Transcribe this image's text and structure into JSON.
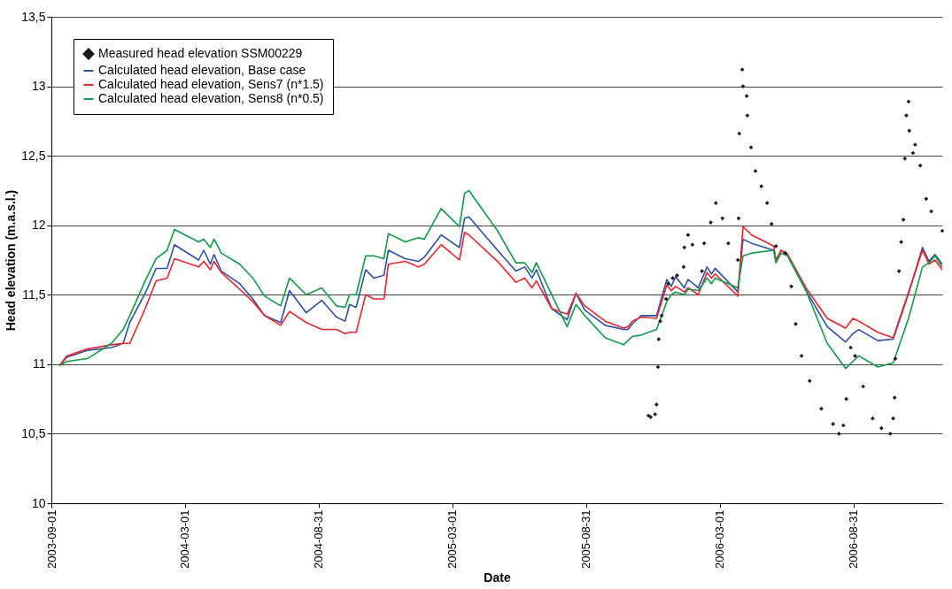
{
  "chart_data": {
    "type": "line",
    "xlabel": "Date",
    "ylabel": "Head elevation (m.a.s.l.)",
    "ylim": [
      10,
      13.5
    ],
    "yticks": [
      10,
      {
        "value": 10.5,
        "label": "10,5"
      },
      11,
      {
        "value": 11.5,
        "label": "11,5"
      },
      12,
      {
        "value": 12.5,
        "label": "12,5"
      },
      13,
      {
        "value": 13.5,
        "label": "13,5"
      }
    ],
    "xlim": [
      "2003-09-01",
      "2006-12-30"
    ],
    "xticks": [
      "2003-09-01",
      "2004-03-01",
      "2004-08-31",
      "2005-03-01",
      "2005-08-31",
      "2006-03-01",
      "2006-08-31"
    ],
    "grid": "y",
    "legend": "top left",
    "series": [
      {
        "name": "Measured head elevation SSM00229",
        "type": "scatter",
        "color": "#1a1a1a",
        "x": [
          "2005-11-24",
          "2005-11-27",
          "2005-12-03",
          "2005-12-05",
          "2005-12-07",
          "2005-12-08",
          "2005-12-10",
          "2005-12-12",
          "2005-12-18",
          "2005-12-21",
          "2005-12-27",
          "2006-01-02",
          "2006-01-11",
          "2006-01-12",
          "2006-01-17",
          "2006-01-23",
          "2006-02-05",
          "2006-02-08",
          "2006-02-17",
          "2006-02-24",
          "2006-03-05",
          "2006-03-13",
          "2006-03-26",
          "2006-03-27",
          "2006-03-28",
          "2006-04-01",
          "2006-04-02",
          "2006-04-07",
          "2006-04-08",
          "2006-04-13",
          "2006-04-19",
          "2006-04-27",
          "2006-05-05",
          "2006-05-11",
          "2006-05-17",
          "2006-05-30",
          "2006-06-07",
          "2006-06-13",
          "2006-06-21",
          "2006-07-02",
          "2006-07-18",
          "2006-08-03",
          "2006-08-11",
          "2006-08-17",
          "2006-08-21",
          "2006-08-27",
          "2006-09-02",
          "2006-09-13",
          "2006-09-26",
          "2006-10-08",
          "2006-10-20",
          "2006-10-24",
          "2006-10-26",
          "2006-10-27",
          "2006-11-01",
          "2006-11-04",
          "2006-11-07",
          "2006-11-09",
          "2006-11-11",
          "2006-11-14",
          "2006-11-15",
          "2006-11-20",
          "2006-11-23",
          "2006-11-30",
          "2006-12-08",
          "2006-12-15",
          "2006-12-30"
        ],
        "values": [
          10.63,
          10.62,
          10.64,
          10.71,
          10.98,
          11.18,
          11.31,
          11.35,
          11.47,
          11.58,
          11.62,
          11.64,
          11.7,
          11.84,
          11.93,
          11.86,
          11.67,
          11.87,
          12.02,
          12.16,
          12.05,
          11.87,
          11.75,
          12.05,
          12.66,
          13.12,
          13.0,
          12.93,
          12.79,
          12.56,
          12.39,
          12.28,
          12.16,
          12.01,
          11.85,
          11.8,
          11.56,
          11.29,
          11.06,
          10.88,
          10.68,
          10.57,
          10.5,
          10.56,
          10.75,
          11.12,
          11.06,
          10.84,
          10.61,
          10.54,
          10.5,
          10.61,
          10.76,
          11.04,
          11.67,
          11.88,
          12.04,
          12.48,
          12.79,
          12.89,
          12.68,
          12.52,
          12.58,
          12.43,
          12.19,
          12.1,
          11.96
        ]
      },
      {
        "name": "Calculated head elevation, Base case",
        "color": "#2e4fa0",
        "values": [
          10.99,
          11.05,
          11.1,
          11.12,
          11.15,
          11.3,
          11.51,
          11.69,
          11.69,
          11.86,
          11.75,
          11.82,
          11.72,
          11.79,
          11.67,
          11.58,
          11.47,
          11.35,
          11.3,
          11.53,
          11.37,
          11.46,
          11.34,
          11.31,
          11.43,
          11.41,
          11.68,
          11.62,
          11.64,
          11.82,
          11.76,
          11.74,
          11.77,
          11.93,
          11.84,
          12.05,
          12.06,
          11.82,
          11.67,
          11.7,
          11.62,
          11.68,
          11.4,
          11.32,
          11.51,
          11.39,
          11.28,
          11.25,
          11.25,
          11.29,
          11.35,
          11.35,
          11.61,
          11.56,
          11.63,
          11.55,
          11.61,
          11.55,
          11.7,
          11.65,
          11.69,
          11.52,
          11.9,
          11.87,
          11.82,
          11.74,
          11.82,
          11.78,
          11.53,
          11.27,
          11.16,
          11.22,
          11.25,
          11.17,
          11.18,
          11.51,
          11.84,
          11.74,
          11.79,
          11.72
        ]
      },
      {
        "name": "Calculated head elevation, Sens7 (n*1.5)",
        "color": "#e8262d",
        "values": [
          10.99,
          11.06,
          11.11,
          11.14,
          11.15,
          11.15,
          11.4,
          11.6,
          11.62,
          11.76,
          11.7,
          11.74,
          11.68,
          11.74,
          11.66,
          11.54,
          11.45,
          11.35,
          11.28,
          11.38,
          11.3,
          11.25,
          11.25,
          11.22,
          11.23,
          11.23,
          11.5,
          11.47,
          11.47,
          11.72,
          11.74,
          11.7,
          11.72,
          11.86,
          11.75,
          11.95,
          11.93,
          11.74,
          11.59,
          11.62,
          11.55,
          11.6,
          11.4,
          11.36,
          11.51,
          11.42,
          11.31,
          11.26,
          11.27,
          11.31,
          11.34,
          11.33,
          11.57,
          11.53,
          11.56,
          11.52,
          11.55,
          11.5,
          11.66,
          11.62,
          11.65,
          11.49,
          11.99,
          11.93,
          11.85,
          11.75,
          11.82,
          11.79,
          11.55,
          11.33,
          11.26,
          11.33,
          11.31,
          11.23,
          11.19,
          11.52,
          11.82,
          11.72,
          11.75,
          11.68
        ]
      },
      {
        "name": "Calculated head elevation, Sens8 (n*0.5)",
        "color": "#119a48",
        "values": [
          10.99,
          11.02,
          11.04,
          11.15,
          11.25,
          11.35,
          11.6,
          11.76,
          11.82,
          11.97,
          11.88,
          11.9,
          11.84,
          11.9,
          11.8,
          11.72,
          11.62,
          11.49,
          11.42,
          11.62,
          11.5,
          11.55,
          11.42,
          11.41,
          11.5,
          11.5,
          11.78,
          11.78,
          11.76,
          11.94,
          11.88,
          11.91,
          11.9,
          12.12,
          11.99,
          12.23,
          12.25,
          11.96,
          11.73,
          11.73,
          11.66,
          11.73,
          11.5,
          11.27,
          11.43,
          11.35,
          11.19,
          11.14,
          11.17,
          11.2,
          11.21,
          11.25,
          11.45,
          11.5,
          11.52,
          11.5,
          11.54,
          11.53,
          11.62,
          11.58,
          11.62,
          11.55,
          11.78,
          11.8,
          11.82,
          11.73,
          11.8,
          11.78,
          11.53,
          11.15,
          10.97,
          11.02,
          11.06,
          10.98,
          11.01,
          11.33,
          11.7,
          11.73,
          11.78,
          11.7
        ]
      }
    ],
    "x": [
      "2003-09-12",
      "2003-09-22",
      "2003-10-20",
      "2003-11-22",
      "2003-12-08",
      "2003-12-17",
      "2004-01-07",
      "2004-01-22",
      "2004-02-06",
      "2004-02-16",
      "2004-03-20",
      "2004-03-27",
      "2004-04-05",
      "2004-04-10",
      "2004-04-20",
      "2004-05-15",
      "2004-06-02",
      "2004-06-18",
      "2004-07-10",
      "2004-07-22",
      "2004-08-14",
      "2004-09-04",
      "2004-09-24",
      "2004-10-06",
      "2004-10-12",
      "2004-10-21",
      "2004-11-03",
      "2004-11-14",
      "2004-11-28",
      "2004-12-04",
      "2004-12-27",
      "2005-01-14",
      "2005-01-22",
      "2005-02-14",
      "2005-03-11",
      "2005-03-18",
      "2005-03-24",
      "2005-05-02",
      "2005-05-27",
      "2005-06-08",
      "2005-06-18",
      "2005-06-24",
      "2005-07-15",
      "2005-08-05",
      "2005-08-17",
      "2005-08-29",
      "2005-09-26",
      "2005-10-21",
      "2005-10-27",
      "2005-11-02",
      "2005-11-14",
      "2005-12-05",
      "2005-12-19",
      "2005-12-25",
      "2005-12-31",
      "2006-01-12",
      "2006-01-17",
      "2006-01-31",
      "2006-02-12",
      "2006-02-18",
      "2006-02-23",
      "2006-03-26",
      "2006-04-02",
      "2006-04-14",
      "2006-05-14",
      "2006-05-17",
      "2006-05-24",
      "2006-06-02",
      "2006-06-27",
      "2006-07-26",
      "2006-08-20",
      "2006-08-30",
      "2006-09-07",
      "2006-10-03",
      "2006-10-24",
      "2006-11-14",
      "2006-12-03",
      "2006-12-12",
      "2006-12-20",
      "2006-12-30"
    ]
  }
}
